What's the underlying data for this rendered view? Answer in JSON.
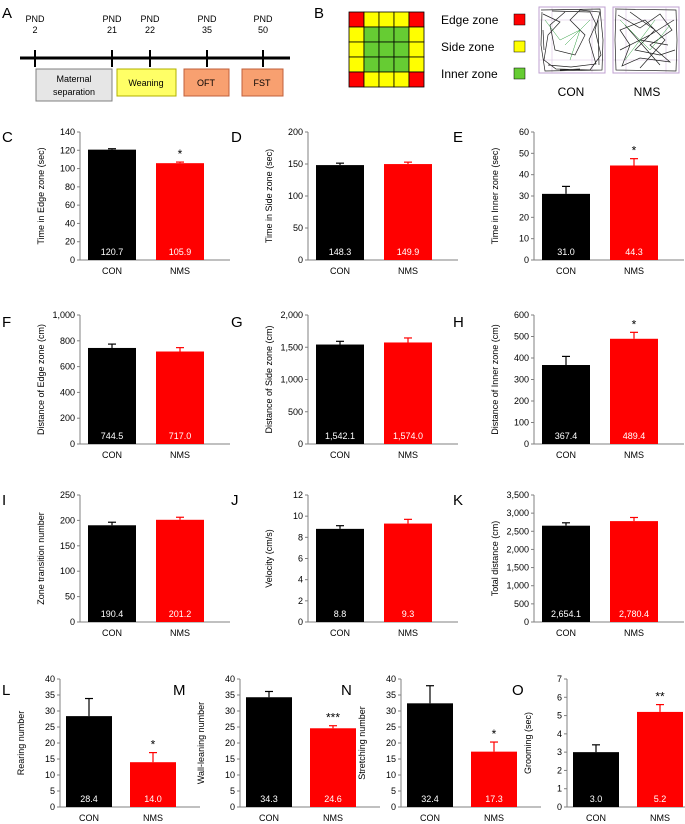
{
  "panel_letters": [
    "A",
    "B"
  ],
  "timeline": {
    "points": [
      {
        "label": "PND",
        "day": "2"
      },
      {
        "label": "PND",
        "day": "21"
      },
      {
        "label": "PND",
        "day": "22"
      },
      {
        "label": "PND",
        "day": "35"
      },
      {
        "label": "PND",
        "day": "50"
      }
    ],
    "phases": [
      {
        "line1": "Maternal",
        "line2": "separation",
        "color": "#e6e6e6",
        "border": "#808080"
      },
      {
        "line1": "Weaning",
        "line2": "",
        "color": "#ffff66",
        "border": "#b0b000"
      },
      {
        "line1": "OFT",
        "line2": "",
        "color": "#f8a070",
        "border": "#c0603c"
      },
      {
        "line1": "FST",
        "line2": "",
        "color": "#f8a070",
        "border": "#c0603c"
      }
    ]
  },
  "zone_legend": [
    {
      "label": "Edge zone",
      "color": "#ff0000"
    },
    {
      "label": "Side zone",
      "color": "#ffff00"
    },
    {
      "label": "Inner zone",
      "color": "#66cc33"
    }
  ],
  "track_labels": [
    "CON",
    "NMS"
  ],
  "colors": {
    "con": "#000000",
    "nms": "#ff0000"
  },
  "chart_data": [
    {
      "letter": "C",
      "type": "bar",
      "categories": [
        "CON",
        "NMS"
      ],
      "values": [
        120.7,
        105.9
      ],
      "labels": [
        "120.7",
        "105.9"
      ],
      "errors": [
        1,
        1.2
      ],
      "ylabel": "Time in Edge zone (sec)",
      "ylim": [
        0,
        140
      ],
      "yticks": [
        "0",
        "20",
        "40",
        "60",
        "80",
        "100",
        "120",
        "140"
      ],
      "sig": "*"
    },
    {
      "letter": "D",
      "type": "bar",
      "categories": [
        "CON",
        "NMS"
      ],
      "values": [
        148.3,
        149.9
      ],
      "labels": [
        "148.3",
        "149.9"
      ],
      "errors": [
        3,
        3
      ],
      "ylabel": "Time in Side zone (sec)",
      "ylim": [
        0,
        200
      ],
      "yticks": [
        "0",
        "50",
        "100",
        "150",
        "200"
      ],
      "sig": ""
    },
    {
      "letter": "E",
      "type": "bar",
      "categories": [
        "CON",
        "NMS"
      ],
      "values": [
        31.0,
        44.3
      ],
      "labels": [
        "31.0",
        "44.3"
      ],
      "errors": [
        3.5,
        3.2
      ],
      "ylabel": "Time in Inner zone (sec)",
      "ylim": [
        0,
        60
      ],
      "yticks": [
        "0",
        "10",
        "20",
        "30",
        "40",
        "50",
        "60"
      ],
      "sig": "*"
    },
    {
      "letter": "F",
      "type": "bar",
      "categories": [
        "CON",
        "NMS"
      ],
      "values": [
        744.5,
        717.0
      ],
      "labels": [
        "744.5",
        "717.0"
      ],
      "errors": [
        30,
        30
      ],
      "ylabel": "Distance of Edge zone (cm)",
      "ylim": [
        0,
        1000
      ],
      "yticks": [
        "0",
        "200",
        "400",
        "600",
        "800",
        "1,000"
      ],
      "sig": ""
    },
    {
      "letter": "G",
      "type": "bar",
      "categories": [
        "CON",
        "NMS"
      ],
      "values": [
        1542.1,
        1574.0
      ],
      "labels": [
        "1,542.1",
        "1,574.0"
      ],
      "errors": [
        50,
        70
      ],
      "ylabel": "Distance of Side zone (cm)",
      "ylim": [
        0,
        2000
      ],
      "yticks": [
        "0",
        "500",
        "1,000",
        "1,500",
        "2,000"
      ],
      "sig": ""
    },
    {
      "letter": "H",
      "type": "bar",
      "categories": [
        "CON",
        "NMS"
      ],
      "values": [
        367.4,
        489.4
      ],
      "labels": [
        "367.4",
        "489.4"
      ],
      "errors": [
        40,
        30
      ],
      "ylabel": "Distance of Inner zone (cm)",
      "ylim": [
        0,
        600
      ],
      "yticks": [
        "0",
        "100",
        "200",
        "300",
        "400",
        "500",
        "600"
      ],
      "sig": "*"
    },
    {
      "letter": "I",
      "type": "bar",
      "categories": [
        "CON",
        "NMS"
      ],
      "values": [
        190.4,
        201.2
      ],
      "labels": [
        "190.4",
        "201.2"
      ],
      "errors": [
        6,
        5
      ],
      "ylabel": "Zone transition number",
      "ylim": [
        0,
        250
      ],
      "yticks": [
        "0",
        "50",
        "100",
        "150",
        "200",
        "250"
      ],
      "sig": ""
    },
    {
      "letter": "J",
      "type": "bar",
      "categories": [
        "CON",
        "NMS"
      ],
      "values": [
        8.8,
        9.3
      ],
      "labels": [
        "8.8",
        "9.3"
      ],
      "errors": [
        0.3,
        0.4
      ],
      "ylabel": "Velocity (cm/s)",
      "ylim": [
        0,
        12
      ],
      "yticks": [
        "0",
        "2",
        "4",
        "6",
        "8",
        "10",
        "12"
      ],
      "sig": ""
    },
    {
      "letter": "K",
      "type": "bar",
      "categories": [
        "CON",
        "NMS"
      ],
      "values": [
        2654.1,
        2780.4
      ],
      "labels": [
        "2,654.1",
        "2,780.4"
      ],
      "errors": [
        80,
        100
      ],
      "ylabel": "Total distance (cm)",
      "ylim": [
        0,
        3500
      ],
      "yticks": [
        "0",
        "500",
        "1,000",
        "1,500",
        "2,000",
        "2,500",
        "3,000",
        "3,500"
      ],
      "sig": ""
    },
    {
      "letter": "L",
      "type": "bar",
      "categories": [
        "CON",
        "NMS"
      ],
      "values": [
        28.4,
        14.0
      ],
      "labels": [
        "28.4",
        "14.0"
      ],
      "errors": [
        5.5,
        3
      ],
      "ylabel": "Rearing number",
      "ylim": [
        0,
        40
      ],
      "yticks": [
        "0",
        "5",
        "10",
        "15",
        "20",
        "25",
        "30",
        "35",
        "40"
      ],
      "sig": "*"
    },
    {
      "letter": "M",
      "type": "bar",
      "categories": [
        "CON",
        "NMS"
      ],
      "values": [
        34.3,
        24.6
      ],
      "labels": [
        "34.3",
        "24.6"
      ],
      "errors": [
        1.8,
        0.8
      ],
      "ylabel": "Wall-leaning number",
      "ylim": [
        0,
        40
      ],
      "yticks": [
        "0",
        "5",
        "10",
        "15",
        "20",
        "25",
        "30",
        "35",
        "40"
      ],
      "sig": "***"
    },
    {
      "letter": "N",
      "type": "bar",
      "categories": [
        "CON",
        "NMS"
      ],
      "values": [
        32.4,
        17.3
      ],
      "labels": [
        "32.4",
        "17.3"
      ],
      "errors": [
        5.5,
        3
      ],
      "ylabel": "Stretching number",
      "ylim": [
        0,
        40
      ],
      "yticks": [
        "0",
        "5",
        "10",
        "15",
        "20",
        "25",
        "30",
        "35",
        "40"
      ],
      "sig": "*"
    },
    {
      "letter": "O",
      "type": "bar",
      "categories": [
        "CON",
        "NMS"
      ],
      "values": [
        3.0,
        5.2
      ],
      "labels": [
        "3.0",
        "5.2"
      ],
      "errors": [
        0.4,
        0.4
      ],
      "ylabel": "Grooming (sec)",
      "ylim": [
        0,
        7
      ],
      "yticks": [
        "0",
        "1",
        "2",
        "3",
        "4",
        "5",
        "6",
        "7"
      ],
      "sig": "**"
    }
  ]
}
